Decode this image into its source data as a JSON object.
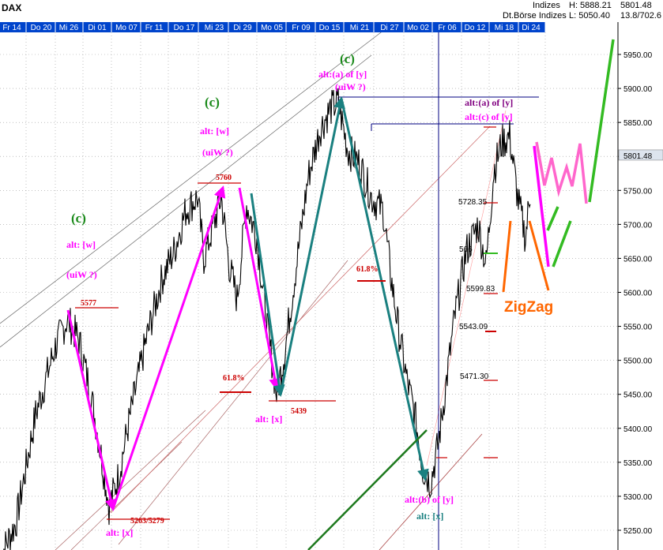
{
  "chart_data": {
    "type": "line",
    "title": "DAX",
    "header": {
      "category_1": "Indizes",
      "category_2": "Dt.Börse Indizes",
      "high": "H: 5888.21",
      "low": "L: 5050.40",
      "last": "5801.48",
      "time": "13.8/702.6"
    },
    "x_ticks": [
      "Fr 14",
      "Do 20",
      "Mi 26",
      "Di 01",
      "Mo 07",
      "Fr 11",
      "Do 17",
      "Mi 23",
      "Di 29",
      "Mo 05",
      "Fr 09",
      "Do 15",
      "Mi 21",
      "Di 27",
      "Mo 02",
      "Fr 06",
      "Do 12",
      "Mi 18",
      "Di 24"
    ],
    "y_ticks": [
      5250,
      5300,
      5350,
      5400,
      5450,
      5500,
      5550,
      5600,
      5650,
      5700,
      5750,
      5800,
      5850,
      5900,
      5950
    ],
    "ylim": [
      5230,
      6010
    ],
    "last_price_label": "5801.48",
    "key_points": [
      {
        "label": "5577",
        "value": 5577
      },
      {
        "label": "5263/5279",
        "value": 5270
      },
      {
        "label": "5760",
        "value": 5760
      },
      {
        "label": "5439",
        "value": 5439
      },
      {
        "label": "5728.35",
        "value": 5728.35
      },
      {
        "label": "5599.83",
        "value": 5599.83
      },
      {
        "label": "5543.09",
        "value": 5543.09
      },
      {
        "label": "5471.30",
        "value": 5471.3
      },
      {
        "label": "61.8%",
        "value": 5455
      },
      {
        "label": "61.8%",
        "value": 5617
      }
    ],
    "annotations": {
      "c1": "(c)",
      "alt_w1": "alt: [w]",
      "uiw1": "(uiW ?)",
      "c2": "(c)",
      "alt_w2": "alt: [w]",
      "uiw2": "(uiW ?)",
      "c3": "(c)",
      "alt_a_y": "alt:(a) of [y]",
      "uiw3": "(uiW ?)",
      "alt_x1": "alt: [x]",
      "alt_x2": "alt: [x]",
      "alt_b_y": "alt:(b) of [y]",
      "alt_x3": "alt: [x]",
      "alt_a_y2": "alt:(a) of [y]",
      "alt_c_y": "alt:(c) of [y]",
      "zigzag": "ZigZag",
      "p5661": "566"
    },
    "colors": {
      "price": "#000000",
      "magenta": "#ff00ff",
      "pink": "#ff66cc",
      "teal": "#1a8080",
      "green": "#1a8a1a",
      "bright_green": "#33bb22",
      "orange": "#ff6600",
      "red": "#cc0000",
      "navy": "#000080",
      "darkred": "#8b0000",
      "axis_bar": "#0033cc"
    }
  }
}
